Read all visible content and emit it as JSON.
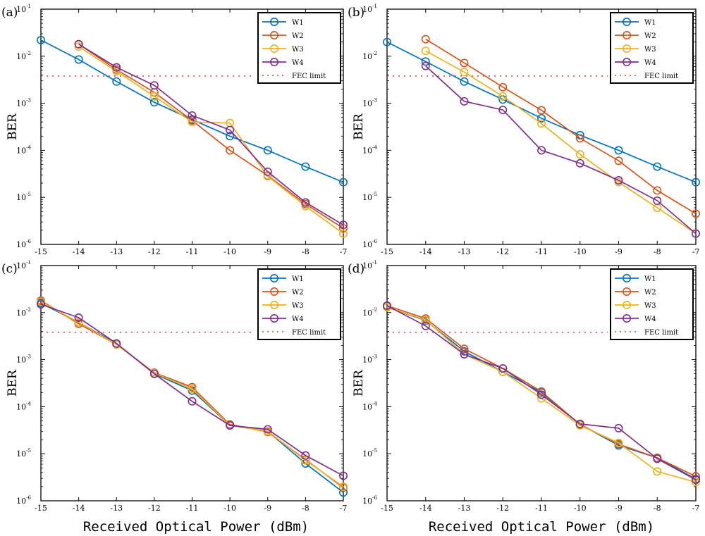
{
  "figure": {
    "xlabel": "Received Optical Power (dBm)",
    "ylabel": "BER"
  },
  "legend_labels": [
    "W1",
    "W2",
    "W3",
    "W4",
    "FEC limit"
  ],
  "series_colors": {
    "W1": "#0072BD",
    "W2": "#D95319",
    "W3": "#EDB120",
    "W4": "#7E2F8E",
    "FEC": "#E8373C"
  },
  "chart_data": [
    {
      "type": "line",
      "panel_label": "(a)",
      "ylabel": "BER",
      "xlabel": "",
      "yscale": "log",
      "xlim": [
        -15,
        -7
      ],
      "ylim": [
        1e-06,
        0.1
      ],
      "x_ticks": [
        "-15",
        "-14",
        "-13",
        "-12",
        "-11",
        "-10",
        "-9",
        "-8",
        "-7"
      ],
      "y_ticks": [
        "10",
        "10",
        "10",
        "10",
        "10",
        "10"
      ],
      "y_tick_exponents": [
        "-1",
        "-2",
        "-3",
        "-4",
        "-5",
        "-6"
      ],
      "fec_limit": 0.0038,
      "series": [
        {
          "name": "W1",
          "x": [
            -15,
            -14,
            -13,
            -12,
            -11,
            -10,
            -9,
            -8,
            -7
          ],
          "values": [
            0.022,
            0.0085,
            0.0029,
            0.00105,
            0.00045,
            0.0002,
            0.0001,
            4.5e-05,
            2.1e-05
          ]
        },
        {
          "name": "W2",
          "x": [
            -14,
            -13,
            -12,
            -11,
            -10,
            -9,
            -8,
            -7
          ],
          "values": [
            0.018,
            0.0052,
            0.0017,
            0.00043,
            0.0001,
            2.9e-05,
            7.2e-06,
            2.2e-06
          ]
        },
        {
          "name": "W3",
          "x": [
            -14,
            -13,
            -12,
            -11,
            -10,
            -9,
            -8,
            -7
          ],
          "values": [
            0.016,
            0.0048,
            0.0014,
            0.0004,
            0.00038,
            2.8e-05,
            6.5e-06,
            1.7e-06
          ]
        },
        {
          "name": "W4",
          "x": [
            -14,
            -13,
            -12,
            -11,
            -10,
            -9,
            -8,
            -7
          ],
          "values": [
            0.018,
            0.0058,
            0.0024,
            0.00055,
            0.00027,
            3.5e-05,
            7.8e-06,
            2.6e-06
          ]
        }
      ]
    },
    {
      "type": "line",
      "panel_label": "(b)",
      "ylabel": "BER",
      "xlabel": "",
      "yscale": "log",
      "xlim": [
        -15,
        -7
      ],
      "ylim": [
        1e-06,
        0.1
      ],
      "x_ticks": [
        "-15",
        "-14",
        "-13",
        "-12",
        "-11",
        "-10",
        "-9",
        "-8",
        "-7"
      ],
      "y_ticks": [
        "10",
        "10",
        "10",
        "10",
        "10",
        "10"
      ],
      "y_tick_exponents": [
        "-1",
        "-2",
        "-3",
        "-4",
        "-5",
        "-6"
      ],
      "fec_limit": 0.0038,
      "series": [
        {
          "name": "W1",
          "x": [
            -15,
            -14,
            -13,
            -12,
            -11,
            -10,
            -9,
            -8,
            -7
          ],
          "values": [
            0.02,
            0.0077,
            0.0029,
            0.0012,
            0.00048,
            0.00021,
            0.0001,
            4.5e-05,
            2.1e-05
          ]
        },
        {
          "name": "W2",
          "x": [
            -14,
            -13,
            -12,
            -11,
            -10,
            -9,
            -8,
            -7
          ],
          "values": [
            0.023,
            0.0072,
            0.0022,
            0.00071,
            0.00018,
            6e-05,
            1.4e-05,
            4.5e-06
          ]
        },
        {
          "name": "W3",
          "x": [
            -14,
            -13,
            -12,
            -11,
            -10,
            -9,
            -8,
            -7
          ],
          "values": [
            0.013,
            0.0046,
            0.0014,
            0.00037,
            8.2e-05,
            2.1e-05,
            6e-06,
            1.7e-06
          ]
        },
        {
          "name": "W4",
          "x": [
            -14,
            -13,
            -12,
            -11,
            -10,
            -9,
            -8,
            -7
          ],
          "values": [
            0.0062,
            0.0011,
            0.00072,
            0.0001,
            5.3e-05,
            2.3e-05,
            8.5e-06,
            1.7e-06
          ]
        }
      ]
    },
    {
      "type": "line",
      "panel_label": "(c)",
      "ylabel": "BER",
      "xlabel": "Received Optical Power (dBm)",
      "yscale": "log",
      "xlim": [
        -15,
        -7
      ],
      "ylim": [
        1e-06,
        0.1
      ],
      "x_ticks": [
        "-15",
        "-14",
        "-13",
        "-12",
        "-11",
        "-10",
        "-9",
        "-8",
        "-7"
      ],
      "y_ticks": [
        "10",
        "10",
        "10",
        "10",
        "10",
        "10"
      ],
      "y_tick_exponents": [
        "-1",
        "-2",
        "-3",
        "-4",
        "-5",
        "-6"
      ],
      "fec_limit": 0.0038,
      "series": [
        {
          "name": "W1",
          "x": [
            -15,
            -14,
            -13,
            -12,
            -11,
            -10,
            -9,
            -8,
            -7
          ],
          "values": [
            0.016,
            0.0062,
            0.0022,
            0.0005,
            0.00022,
            4e-05,
            3e-05,
            6.2e-06,
            1.5e-06
          ]
        },
        {
          "name": "W2",
          "x": [
            -15,
            -14,
            -13,
            -12,
            -11,
            -10,
            -9,
            -8,
            -7
          ],
          "values": [
            0.018,
            0.0058,
            0.0021,
            0.00053,
            0.00026,
            4.2e-05,
            2.9e-05,
            7.5e-06,
            1.9e-06
          ]
        },
        {
          "name": "W3",
          "x": [
            -15,
            -14,
            -13,
            -12,
            -11,
            -10,
            -9,
            -8,
            -7
          ],
          "values": [
            0.017,
            0.0062,
            0.0021,
            0.00052,
            0.00024,
            4e-05,
            3e-05,
            7.2e-06,
            2e-06
          ]
        },
        {
          "name": "W4",
          "x": [
            -15,
            -14,
            -13,
            -12,
            -11,
            -10,
            -9,
            -8,
            -7
          ],
          "values": [
            0.015,
            0.0078,
            0.0022,
            0.0005,
            0.00013,
            4e-05,
            3.3e-05,
            9.2e-06,
            3.4e-06
          ]
        }
      ]
    },
    {
      "type": "line",
      "panel_label": "(d)",
      "ylabel": "BER",
      "xlabel": "Received Optical Power (dBm)",
      "yscale": "log",
      "xlim": [
        -15,
        -7
      ],
      "ylim": [
        1e-06,
        0.1
      ],
      "x_ticks": [
        "-15",
        "-14",
        "-13",
        "-12",
        "-11",
        "-10",
        "-9",
        "-8",
        "-7"
      ],
      "y_ticks": [
        "10",
        "10",
        "10",
        "10",
        "10",
        "10"
      ],
      "y_tick_exponents": [
        "-1",
        "-2",
        "-3",
        "-4",
        "-5",
        "-6"
      ],
      "fec_limit": 0.0038,
      "series": [
        {
          "name": "W1",
          "x": [
            -15,
            -14,
            -13,
            -12,
            -11,
            -10,
            -9,
            -8,
            -7
          ],
          "values": [
            0.013,
            0.0068,
            0.0015,
            0.00055,
            0.0002,
            4.2e-05,
            1.5e-05,
            8.2e-06,
            2.9e-06
          ]
        },
        {
          "name": "W2",
          "x": [
            -15,
            -14,
            -13,
            -12,
            -11,
            -10,
            -9,
            -8,
            -7
          ],
          "values": [
            0.014,
            0.0075,
            0.0017,
            0.00065,
            0.00021,
            4.2e-05,
            1.6e-05,
            8.2e-06,
            3.3e-06
          ]
        },
        {
          "name": "W3",
          "x": [
            -15,
            -14,
            -13,
            -12,
            -11,
            -10,
            -9,
            -8,
            -7
          ],
          "values": [
            0.013,
            0.007,
            0.0013,
            0.00055,
            0.00015,
            4e-05,
            1.7e-05,
            4.2e-06,
            2.5e-06
          ]
        },
        {
          "name": "W4",
          "x": [
            -15,
            -14,
            -13,
            -12,
            -11,
            -10,
            -9,
            -8,
            -7
          ],
          "values": [
            0.014,
            0.0052,
            0.0013,
            0.00065,
            0.00018,
            4.3e-05,
            3.5e-05,
            7.8e-06,
            2.8e-06
          ]
        }
      ]
    }
  ]
}
